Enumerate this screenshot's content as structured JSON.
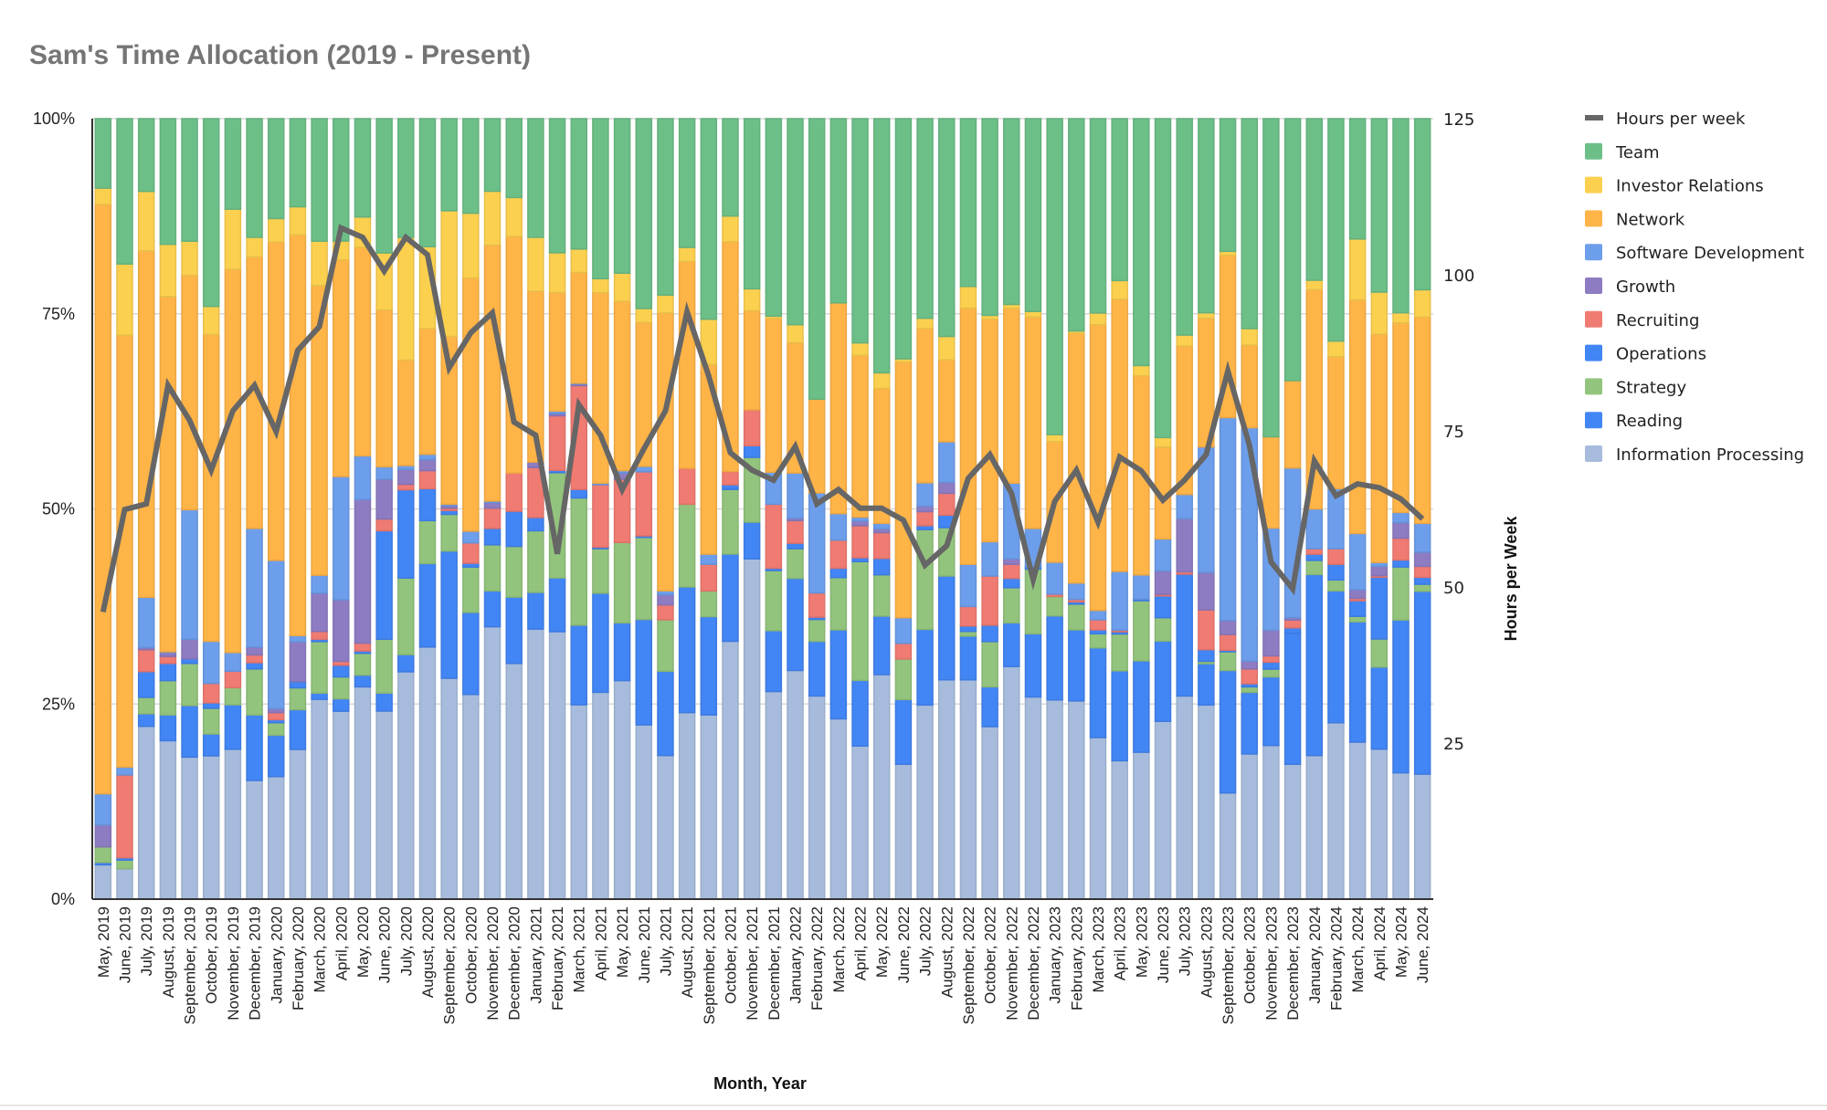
{
  "chart_data": {
    "type": "bar",
    "stacked": "percent",
    "title": "Sam's Time Allocation (2019 - Present)",
    "xlabel": "Month, Year",
    "ylabel": "",
    "y2label": "Hours per Week",
    "ylim": [
      0,
      100
    ],
    "y2lim": [
      0,
      125
    ],
    "yticks": [
      "0%",
      "25%",
      "50%",
      "75%",
      "100%"
    ],
    "y2ticks": [
      "25",
      "50",
      "75",
      "100",
      "125"
    ],
    "grid": true,
    "legend_position": "right",
    "categories": [
      "May, 2019",
      "June, 2019",
      "July, 2019",
      "August, 2019",
      "September, 2019",
      "October, 2019",
      "November, 2019",
      "December, 2019",
      "January, 2020",
      "February, 2020",
      "March, 2020",
      "April, 2020",
      "May, 2020",
      "June, 2020",
      "July, 2020",
      "August, 2020",
      "September, 2020",
      "October, 2020",
      "November, 2020",
      "December, 2020",
      "January, 2021",
      "February, 2021",
      "March, 2021",
      "April, 2021",
      "May, 2021",
      "June, 2021",
      "July, 2021",
      "August, 2021",
      "September, 2021",
      "October, 2021",
      "November, 2021",
      "December, 2021",
      "January, 2022",
      "February, 2022",
      "March, 2022",
      "April, 2022",
      "May, 2022",
      "June, 2022",
      "July, 2022",
      "August, 2022",
      "September, 2022",
      "October, 2022",
      "November, 2022",
      "December, 2022",
      "January, 2023",
      "February, 2023",
      "March, 2023",
      "April, 2023",
      "May, 2023",
      "June, 2023",
      "July, 2023",
      "August, 2023",
      "September, 2023",
      "October, 2023",
      "November, 2023",
      "December, 2023",
      "January, 2024",
      "February, 2024",
      "March, 2024",
      "April, 2024",
      "May, 2024",
      "June, 2024"
    ],
    "series": [
      {
        "name": "Information Processing",
        "color": "#a7bcdc",
        "values": [
          4.4,
          3.9,
          22.1,
          20.3,
          18.2,
          18.4,
          19.2,
          15.2,
          15.7,
          19.2,
          25.6,
          24.1,
          27.2,
          24.1,
          29.1,
          32.3,
          28.3,
          26.2,
          34.9,
          30.2,
          34.6,
          34.3,
          24.9,
          26.5,
          28,
          22.3,
          18.4,
          23.9,
          23.6,
          33.1,
          43.6,
          26.6,
          29.3,
          26,
          23.1,
          19.6,
          28.8,
          17.3,
          24.9,
          28.1,
          28.1,
          22.1,
          29.8,
          25.9,
          25.6,
          25.4,
          20.7,
          17.7,
          18.8,
          22.8,
          26,
          24.9,
          13.6,
          18.6,
          19.7,
          17.3,
          18.4,
          22.6,
          20.1,
          19.2,
          16.2,
          16
        ]
      },
      {
        "name": "Reading",
        "color": "#4285f4",
        "values": [
          0.3,
          0,
          1.6,
          3.3,
          6.6,
          2.8,
          5.7,
          8.4,
          5.3,
          5.1,
          0.8,
          1.6,
          1.5,
          2.3,
          2.2,
          10.7,
          16.3,
          10.5,
          4.6,
          8.5,
          4.7,
          6.9,
          10.2,
          12.7,
          7.4,
          13.5,
          10.8,
          16.1,
          12.6,
          11.2,
          4.7,
          7.8,
          11.8,
          7,
          11.4,
          8.4,
          7.5,
          8.3,
          9.7,
          13.3,
          5.6,
          5.1,
          5.6,
          8.1,
          10.8,
          9.1,
          11.5,
          11.5,
          11.7,
          10.3,
          15.6,
          5.3,
          15.7,
          7.9,
          8.8,
          16.8,
          23.2,
          16.9,
          15.4,
          10.5,
          19.6,
          23.4
        ]
      },
      {
        "name": "Strategy",
        "color": "#93c47d",
        "values": [
          2,
          1.1,
          2.1,
          4.4,
          5.4,
          3.3,
          2.2,
          5.9,
          1.6,
          2.8,
          6.6,
          2.8,
          2.8,
          6.9,
          9.8,
          5.5,
          4.7,
          5.8,
          5.9,
          6.5,
          7.9,
          13.5,
          16.3,
          5.7,
          10.3,
          10.5,
          6.6,
          10.6,
          3.3,
          8.3,
          8.3,
          7.7,
          3.8,
          2.8,
          6.7,
          15.2,
          5.3,
          5.2,
          12.8,
          6.2,
          0.6,
          5.8,
          4.5,
          8.3,
          2.5,
          3.3,
          1.8,
          4.7,
          7.7,
          3,
          0,
          0.3,
          2.4,
          0.7,
          1,
          0,
          1.8,
          1.4,
          0.7,
          3.6,
          6.8,
          0.9
        ]
      },
      {
        "name": "Operations",
        "color": "#4285f4",
        "values": [
          0,
          0.3,
          3.3,
          2.2,
          0.6,
          0.7,
          0,
          0.8,
          0.4,
          0.8,
          0.3,
          1.5,
          0.3,
          13.9,
          11.3,
          4.1,
          0.5,
          0.5,
          2.1,
          4.5,
          1.7,
          0.3,
          1.1,
          0.2,
          0,
          0.2,
          0,
          0,
          0,
          0.6,
          1.5,
          0.3,
          0.7,
          0.3,
          1.2,
          0.5,
          2.1,
          0,
          0.5,
          1.6,
          0.7,
          2.1,
          1.2,
          0.3,
          0,
          0.3,
          0.5,
          0.3,
          0.2,
          2.8,
          0,
          1.5,
          0.2,
          0.4,
          0.9,
          0.7,
          0.8,
          2,
          2,
          7.9,
          0.9,
          0.9
        ]
      },
      {
        "name": "Recruiting",
        "color": "#f07b72",
        "values": [
          0,
          10.6,
          2.8,
          0.9,
          0,
          2.5,
          2.1,
          1,
          0.9,
          0,
          1,
          0.5,
          1,
          1.5,
          0.7,
          2.3,
          0.3,
          2.6,
          2.6,
          4.9,
          6.4,
          7,
          13.3,
          8,
          8.1,
          8.2,
          1.9,
          4.6,
          3.4,
          1.7,
          4.6,
          8.2,
          2.9,
          3.1,
          3.6,
          4.1,
          3.3,
          2,
          1.8,
          2.8,
          2.5,
          6.3,
          1.8,
          0,
          0.3,
          0.3,
          1.3,
          0.2,
          0,
          0.2,
          0.3,
          5.1,
          2,
          1.9,
          0.8,
          1,
          0.7,
          2,
          0.3,
          0.2,
          2.8,
          1.4
        ]
      },
      {
        "name": "Growth",
        "color": "#8e7cc3",
        "values": [
          2.8,
          0,
          0.3,
          0.5,
          2.5,
          0,
          0,
          1,
          0.5,
          5.1,
          4.9,
          7.9,
          18.4,
          5.1,
          1.9,
          1.4,
          0.3,
          0,
          0.7,
          0,
          0.7,
          0.3,
          0.2,
          0,
          0.8,
          0,
          1.3,
          0,
          0,
          0,
          0,
          0,
          0.3,
          0,
          0,
          0.6,
          0.5,
          0,
          0.7,
          1.4,
          0,
          0,
          0.7,
          0,
          0,
          0,
          0,
          0,
          0,
          3,
          6.8,
          4.8,
          1.8,
          1,
          3.3,
          0.3,
          0,
          0,
          1.1,
          1.2,
          2,
          1.8
        ]
      },
      {
        "name": "Software Development",
        "color": "#6d9eeb",
        "values": [
          4,
          1,
          6.4,
          0.1,
          16.6,
          5.4,
          2.4,
          15.2,
          19,
          0.8,
          2.3,
          15.8,
          5.6,
          1.6,
          0.5,
          0.7,
          0.2,
          1.5,
          0.2,
          0,
          0,
          0.3,
          0.1,
          0.2,
          0.3,
          0.7,
          0.5,
          0,
          1.3,
          0,
          0,
          4.1,
          5.8,
          12.8,
          3.4,
          0.5,
          0.7,
          3.3,
          3,
          5.2,
          5.4,
          4.4,
          9.7,
          4.9,
          4.1,
          2.1,
          1.2,
          7.5,
          3.1,
          4.1,
          3.1,
          16.1,
          26,
          29.9,
          13.1,
          19.2,
          5.1,
          7.7,
          7.2,
          0.5,
          1.3,
          3.7
        ]
      },
      {
        "name": "Network",
        "color": "#ffb448",
        "values": [
          75.5,
          55.3,
          44.3,
          45.5,
          30,
          39.4,
          49.1,
          34.8,
          40.8,
          51.4,
          37.1,
          27.8,
          26.7,
          20.1,
          13.5,
          16.1,
          21.5,
          32.4,
          32.8,
          30.3,
          21.9,
          15.2,
          14.2,
          24.4,
          21.7,
          18.4,
          35.6,
          26.5,
          24.3,
          29.5,
          12.7,
          19.7,
          16.7,
          12,
          27,
          20.7,
          17.3,
          32.8,
          19.8,
          10.5,
          32.8,
          28.5,
          22.4,
          27.1,
          15.5,
          32,
          36.6,
          34.8,
          25.5,
          11.8,
          19,
          16.5,
          20.8,
          10.6,
          11.7,
          11.2,
          28.1,
          16.9,
          29.9,
          29.2,
          24.3,
          26.4
        ]
      },
      {
        "name": "Investor Relations",
        "color": "#fcd04f",
        "values": [
          2.1,
          9.1,
          7.6,
          6.7,
          4.4,
          3.6,
          7.7,
          2.5,
          3,
          3.6,
          5.7,
          2.4,
          3.9,
          7.3,
          15.7,
          10.5,
          16.1,
          8.3,
          6.9,
          5,
          6.9,
          5.1,
          3,
          1.8,
          3.6,
          1.8,
          2.3,
          1.8,
          5.8,
          3.3,
          2.8,
          0.3,
          2.3,
          0,
          0,
          1.6,
          2,
          0.4,
          1.3,
          3,
          2.8,
          0.5,
          0.5,
          0.7,
          0.9,
          0.3,
          1.5,
          2.4,
          1.3,
          1.2,
          1.4,
          0.7,
          0.5,
          2.1,
          0,
          0,
          1.2,
          2,
          7.8,
          5.4,
          1.3,
          3.5
        ]
      },
      {
        "name": "Team",
        "color": "#6dbf88",
        "values": [
          8.9,
          18.6,
          9.3,
          16.1,
          15.7,
          24.1,
          11.6,
          15.2,
          12.8,
          11.3,
          15.7,
          15.7,
          12.6,
          17.2,
          15.2,
          16.4,
          11.8,
          12.1,
          9.3,
          10.1,
          15.2,
          17.2,
          16.7,
          20.5,
          19.8,
          24.3,
          22.6,
          16.5,
          25.7,
          12.5,
          21.8,
          25.3,
          26.4,
          35.9,
          23.6,
          28.7,
          32.6,
          30.8,
          25.6,
          27.9,
          21.5,
          25.2,
          23.8,
          24.7,
          40.6,
          27.2,
          24.9,
          20.7,
          31.6,
          40.9,
          27.7,
          24.9,
          17,
          26.9,
          40.8,
          33.6,
          20.7,
          28.5,
          15.4,
          22.2,
          24.9,
          21.9
        ]
      }
    ],
    "line": {
      "name": "Hours per week",
      "type": "line",
      "axis": "right",
      "color": "#666666",
      "values": [
        46,
        62.4,
        63.3,
        82.3,
        76.7,
        68.7,
        78.2,
        82.3,
        74.9,
        87.9,
        91.7,
        107.5,
        106,
        100.6,
        106,
        103.2,
        85.1,
        90.7,
        93.9,
        76.4,
        74.3,
        55.3,
        79.2,
        74.3,
        65.6,
        72.1,
        78.2,
        94.1,
        83.8,
        71.5,
        68.7,
        67.1,
        72.5,
        63.3,
        65.6,
        62.6,
        62.6,
        60.7,
        53.5,
        56.6,
        67.4,
        71.2,
        65,
        51.2,
        63.7,
        68.7,
        60.4,
        70.8,
        68.6,
        63.9,
        67.1,
        71.2,
        84.6,
        72.7,
        54,
        49.7,
        70.2,
        64.6,
        66.5,
        65.9,
        64.1,
        60.9
      ]
    },
    "legend": [
      "Hours per week",
      "Team",
      "Investor Relations",
      "Network",
      "Software Development",
      "Growth",
      "Recruiting",
      "Operations",
      "Strategy",
      "Reading",
      "Information Processing"
    ]
  }
}
